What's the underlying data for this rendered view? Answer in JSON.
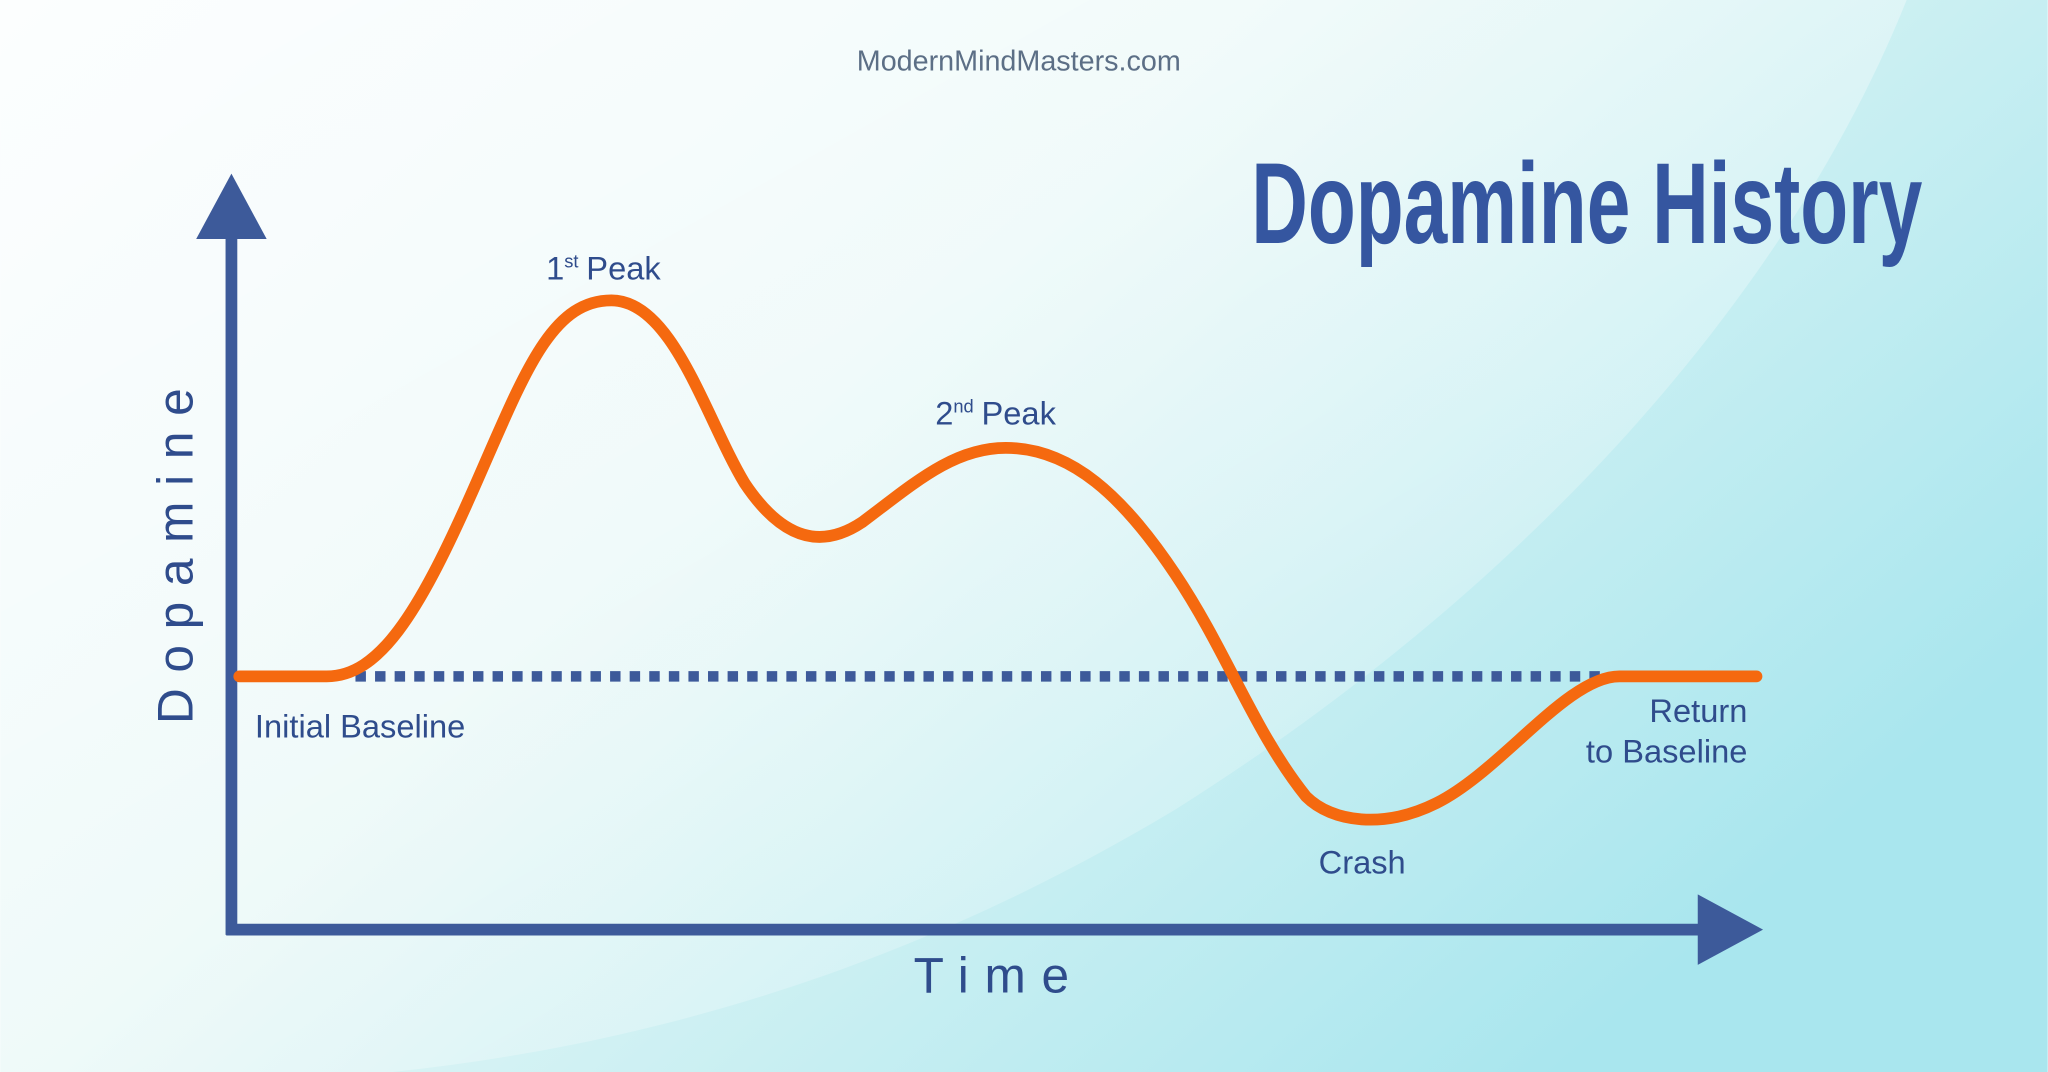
{
  "header": {
    "site": "ModernMindMasters.com",
    "title": "Dopamine History"
  },
  "axes": {
    "y_label": "Dopamine",
    "x_label": "Time"
  },
  "labels": {
    "first_peak": {
      "number": "1",
      "suffix": "st",
      "text": "Peak"
    },
    "second_peak": {
      "number": "2",
      "suffix": "nd",
      "text": "Peak"
    },
    "initial_baseline": "Initial Baseline",
    "crash": "Crash",
    "return_to_baseline": [
      "Return",
      "to Baseline"
    ]
  }
}
